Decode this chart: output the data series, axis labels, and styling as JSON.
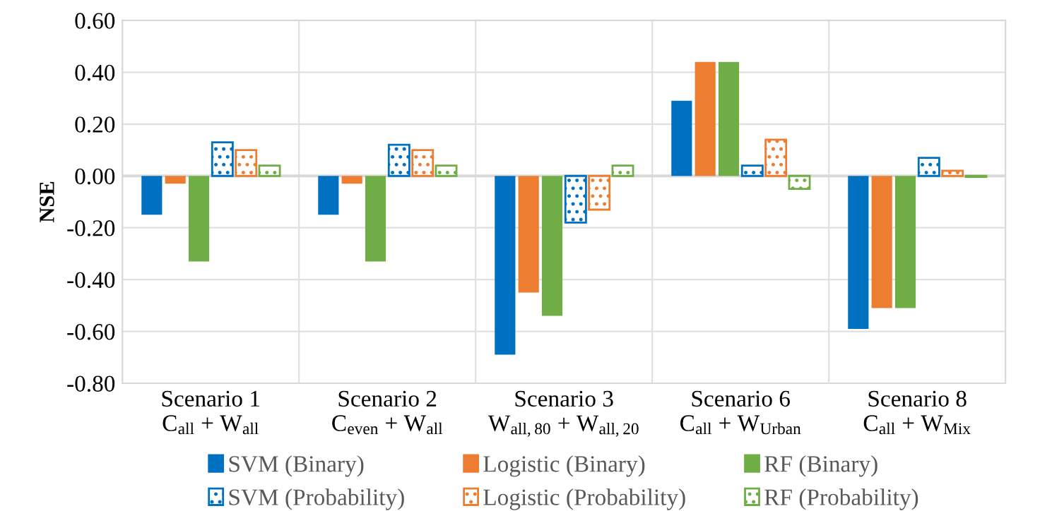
{
  "chart_data": {
    "type": "bar",
    "ylabel": "NSE",
    "categories": [
      "Scenario 1\nC$_{all}$ + W$_{all}$",
      "Scenario 2\nC$_{even}$ + W$_{all}$",
      "Scenario 3\nW$_{all,80}$ + W$_{all,20}$",
      "Scenario 6\nC$_{all}$ + W$_{Urban}$",
      "Scenario 8\nC$_{all}$ + W$_{Mix}$"
    ],
    "series": [
      {
        "name": "SVM (Binary)",
        "color": "#0070c0",
        "values": [
          -0.15,
          -0.15,
          -0.69,
          0.29,
          -0.59
        ]
      },
      {
        "name": "Logistic (Binary)",
        "color": "#ed7d31",
        "values": [
          -0.03,
          -0.03,
          -0.45,
          0.44,
          -0.51
        ]
      },
      {
        "name": "RF (Binary)",
        "color": "#70ad47",
        "values": [
          -0.33,
          -0.33,
          -0.54,
          0.44,
          -0.51
        ]
      },
      {
        "name": "SVM (Probability)",
        "color": "#0070c0",
        "values": [
          0.13,
          0.12,
          -0.18,
          0.04,
          0.07
        ]
      },
      {
        "name": "Logistic (Probability)",
        "color": "#ed7d31",
        "values": [
          0.1,
          0.1,
          -0.13,
          0.14,
          0.02
        ]
      },
      {
        "name": "RF (Probability)",
        "color": "#70ad47",
        "values": [
          0.04,
          0.04,
          0.04,
          -0.05,
          -0.004
        ]
      }
    ],
    "ylim": [
      -0.8,
      0.6
    ],
    "yticks": [
      {
        "value": -0.8,
        "label": "-0.80"
      },
      {
        "value": -0.6,
        "label": "-0.60"
      },
      {
        "value": -0.4,
        "label": "-0.40"
      },
      {
        "value": -0.2,
        "label": "-0.20"
      },
      {
        "value": 0,
        "label": "0.00"
      },
      {
        "value": 0.2,
        "label": "0.20"
      },
      {
        "value": 0.4,
        "label": "0.40"
      },
      {
        "value": 0.6,
        "label": "0.60"
      }
    ],
    "grid": "y",
    "legend": "bottom"
  }
}
